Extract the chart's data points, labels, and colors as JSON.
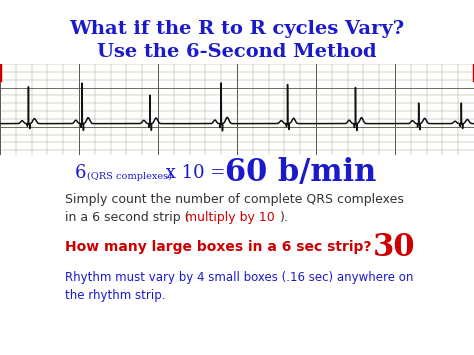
{
  "title_line1": "What if the R to R cycles Vary?",
  "title_line2": "Use the 6-Second Method",
  "title_color": "#1a1acc",
  "bg_color": "#ffffff",
  "ecg_bg_color": "#d8c8a8",
  "ecg_grid_minor_color": "#888866",
  "ecg_grid_major_color": "#555544",
  "ecg_line_color": "#111111",
  "red_marker_color": "#cc0000",
  "formula_color": "#1a1acc",
  "desc_color": "#333333",
  "desc_red_color": "#cc0000",
  "question_color": "#cc0000",
  "footer_color": "#1a1acc",
  "title_fontsize": 14,
  "formula_main_fontsize": 13,
  "formula_sub_fontsize": 7,
  "formula_big_fontsize": 22,
  "desc_fontsize": 9,
  "question_fontsize": 10,
  "question_big_fontsize": 22,
  "footer_fontsize": 8.5,
  "beat_positions": [
    1.8,
    5.2,
    9.5,
    14.0,
    18.2,
    22.5,
    26.5,
    29.2
  ],
  "beat_scales": [
    0.85,
    1.0,
    0.95,
    1.05,
    0.9,
    1.0,
    0.88,
    0.7
  ]
}
